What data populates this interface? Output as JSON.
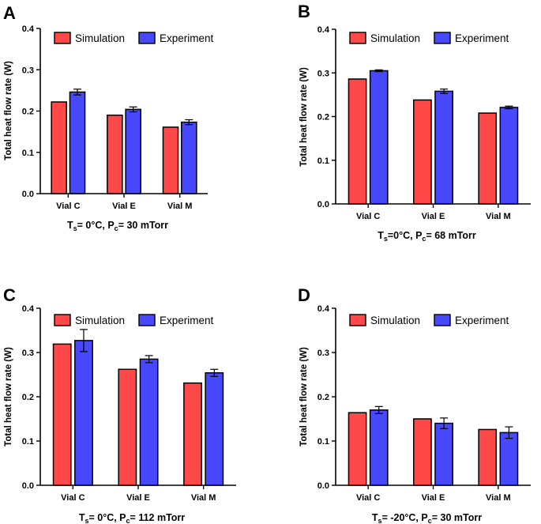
{
  "figure": {
    "panel_letters": [
      "A",
      "B",
      "C",
      "D"
    ]
  },
  "chart_data": [
    {
      "panel": "A",
      "type": "bar",
      "categories": [
        "Vial C",
        "Vial E",
        "Vial M"
      ],
      "series": [
        {
          "name": "Simulation",
          "values": [
            0.222,
            0.19,
            0.161
          ],
          "errors": [
            0,
            0,
            0
          ]
        },
        {
          "name": "Experiment",
          "values": [
            0.246,
            0.204,
            0.173
          ],
          "errors": [
            0.007,
            0.006,
            0.006
          ]
        }
      ],
      "ylabel": "Total heat flow rate (W)",
      "xlabel": {
        "lead": "T",
        "sub1": "s",
        "mid": "= 0°C, P",
        "sub2": "c",
        "tail": "= 30 mTorr"
      },
      "ylim": [
        0,
        0.4
      ],
      "yticks": [
        "0.0",
        "0.1",
        "0.2",
        "0.3",
        "0.4"
      ],
      "legend": "top",
      "colors": {
        "Simulation": "#ff4848",
        "Experiment": "#4848ff"
      }
    },
    {
      "panel": "B",
      "type": "bar",
      "categories": [
        "Vial C",
        "Vial E",
        "Vial M"
      ],
      "series": [
        {
          "name": "Simulation",
          "values": [
            0.286,
            0.238,
            0.208
          ],
          "errors": [
            0,
            0,
            0
          ]
        },
        {
          "name": "Experiment",
          "values": [
            0.305,
            0.258,
            0.221
          ],
          "errors": [
            0.002,
            0.005,
            0.003
          ]
        }
      ],
      "ylabel": "Total heat flow rate (W)",
      "xlabel": {
        "lead": "T",
        "sub1": "s",
        "mid": "=0°C, P",
        "sub2": "c",
        "tail": "= 68 mTorr"
      },
      "ylim": [
        0,
        0.4
      ],
      "yticks": [
        "0.0",
        "0.1",
        "0.2",
        "0.3",
        "0.4"
      ],
      "legend": "top",
      "colors": {
        "Simulation": "#ff4848",
        "Experiment": "#4848ff"
      }
    },
    {
      "panel": "C",
      "type": "bar",
      "categories": [
        "Vial C",
        "Vial E",
        "Vial M"
      ],
      "series": [
        {
          "name": "Simulation",
          "values": [
            0.319,
            0.262,
            0.231
          ],
          "errors": [
            0,
            0,
            0
          ]
        },
        {
          "name": "Experiment",
          "values": [
            0.327,
            0.285,
            0.254
          ],
          "errors": [
            0.025,
            0.008,
            0.008
          ]
        }
      ],
      "ylabel": "Total heat flow rate (W)",
      "xlabel": {
        "lead": "T",
        "sub1": "s",
        "mid": "= 0°C, P",
        "sub2": "c",
        "tail": "= 112 mTorr"
      },
      "ylim": [
        0,
        0.4
      ],
      "yticks": [
        "0.0",
        "0.1",
        "0.2",
        "0.3",
        "0.4"
      ],
      "legend": "top",
      "colors": {
        "Simulation": "#ff4848",
        "Experiment": "#4848ff"
      }
    },
    {
      "panel": "D",
      "type": "bar",
      "categories": [
        "Vial C",
        "Vial E",
        "Vial M"
      ],
      "series": [
        {
          "name": "Simulation",
          "values": [
            0.164,
            0.15,
            0.126
          ],
          "errors": [
            0,
            0,
            0
          ]
        },
        {
          "name": "Experiment",
          "values": [
            0.17,
            0.14,
            0.119
          ],
          "errors": [
            0.008,
            0.012,
            0.013
          ]
        }
      ],
      "ylabel": "Total heat flow rate (W)",
      "xlabel": {
        "lead": "T",
        "sub1": "s",
        "mid": "= -20°C, P",
        "sub2": "c",
        "tail": "=  30 mTorr"
      },
      "ylim": [
        0,
        0.4
      ],
      "yticks": [
        "0.0",
        "0.1",
        "0.2",
        "0.3",
        "0.4"
      ],
      "legend": "top",
      "colors": {
        "Simulation": "#ff4848",
        "Experiment": "#4848ff"
      }
    }
  ]
}
